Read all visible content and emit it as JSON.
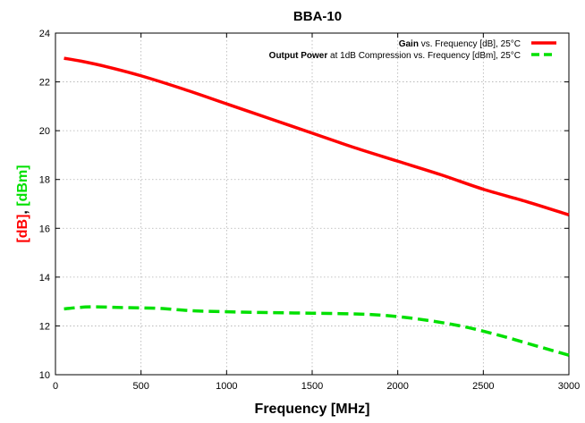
{
  "chart_data": {
    "type": "line",
    "title": "BBA-10",
    "xlabel": "Frequency [MHz]",
    "ylabel_parts": [
      "[dB]",
      ", ",
      "[dBm]"
    ],
    "xlim": [
      0,
      3000
    ],
    "ylim": [
      10,
      24
    ],
    "xticks": [
      0,
      500,
      1000,
      1500,
      2000,
      2500,
      3000
    ],
    "yticks": [
      10,
      12,
      14,
      16,
      18,
      20,
      22,
      24
    ],
    "grid": true,
    "legend_position": "top-right",
    "series": [
      {
        "name_bold": "Gain",
        "name_rest": " vs. Frequency [dB], 25°C",
        "color": "#ff0000",
        "style": "solid",
        "x": [
          50,
          150,
          300,
          500,
          750,
          1000,
          1250,
          1500,
          1750,
          2000,
          2250,
          2500,
          2750,
          3000
        ],
        "y": [
          22.97,
          22.85,
          22.62,
          22.25,
          21.7,
          21.1,
          20.5,
          19.9,
          19.3,
          18.75,
          18.2,
          17.6,
          17.1,
          16.55
        ]
      },
      {
        "name_bold": "Output Power",
        "name_rest": " at 1dB Compression vs. Frequency [dBm], 25°C",
        "color": "#00e000",
        "style": "dashed",
        "x": [
          50,
          200,
          400,
          600,
          800,
          1000,
          1200,
          1500,
          1800,
          2000,
          2200,
          2400,
          2600,
          2800,
          3000
        ],
        "y": [
          12.7,
          12.78,
          12.75,
          12.72,
          12.62,
          12.58,
          12.55,
          12.52,
          12.48,
          12.38,
          12.2,
          11.95,
          11.6,
          11.2,
          10.8
        ]
      }
    ]
  }
}
